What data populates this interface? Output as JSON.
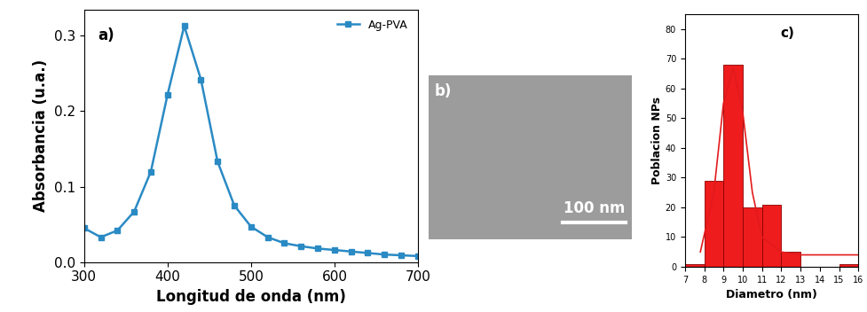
{
  "chart_data": [
    {
      "type": "line",
      "annotations": [
        "a)"
      ],
      "x_label": "Longitud de onda (nm)",
      "y_label": "Absorbancia (u.a.)",
      "x": [
        300,
        320,
        340,
        360,
        380,
        400,
        420,
        440,
        460,
        480,
        500,
        520,
        540,
        560,
        580,
        600,
        620,
        640,
        660,
        680,
        700
      ],
      "series": [
        {
          "name": "Ag-PVA",
          "color": "#2a8ac4",
          "marker": "s",
          "line_style": "solid",
          "values": [
            0.045,
            0.033,
            0.042,
            0.067,
            0.12,
            0.222,
            0.313,
            0.242,
            0.133,
            0.075,
            0.047,
            0.033,
            0.025,
            0.021,
            0.018,
            0.016,
            0.014,
            0.012,
            0.01,
            0.009,
            0.008
          ]
        }
      ],
      "xlim": [
        300,
        700
      ],
      "xticks": [
        300,
        400,
        500,
        600,
        700
      ],
      "ylim": [
        0,
        0.335
      ],
      "yticks": [
        {
          "value": 0,
          "label": "0.0"
        },
        {
          "value": 0.1,
          "label": "0.1"
        },
        {
          "value": 0.2,
          "label": "0.2"
        },
        {
          "value": 0.3,
          "label": "0.3"
        }
      ],
      "legend": "upper right"
    },
    {
      "type": "histogram",
      "annotations": [
        "c)"
      ],
      "x_label": "Diametro (nm)",
      "y_label": "Poblacion NPs",
      "bins": [
        7,
        8,
        9,
        10,
        11,
        12,
        13,
        14,
        15,
        16
      ],
      "values": [
        1,
        29,
        68,
        20,
        21,
        5,
        0,
        0,
        1
      ],
      "color": "#ee1c1c",
      "series": [
        {
          "type": "line",
          "color": "#e31a1c",
          "line_style": "solid",
          "x": [
            7.8,
            8.5,
            9.0,
            9.5,
            10.0,
            10.5,
            11.0,
            12.0,
            13.0,
            14.0,
            15.0,
            16.0
          ],
          "values": [
            5,
            25,
            55,
            67,
            52,
            25,
            10,
            5,
            4,
            4,
            4,
            4
          ]
        }
      ],
      "xlim": [
        7,
        16
      ],
      "xticks": [
        7,
        8,
        9,
        10,
        11,
        12,
        13,
        14,
        15,
        16
      ],
      "ylim": [
        0,
        85
      ],
      "yticks": [
        0,
        10,
        20,
        30,
        40,
        50,
        60,
        70,
        80
      ]
    }
  ],
  "image": {
    "label": "b)",
    "scale_bar": "100 nm"
  }
}
